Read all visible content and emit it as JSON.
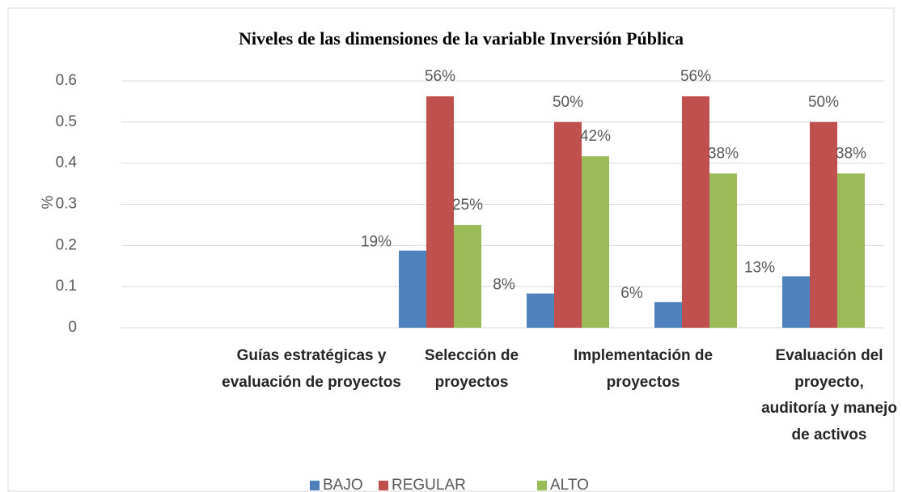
{
  "chart_data": {
    "type": "bar",
    "title": "Niveles de las dimensiones de la variable Inversión Pública",
    "y_label": "%",
    "categories": [
      "Guías estratégicas y evaluación de proyectos",
      "Selección de proyectos",
      "Implementación de proyectos",
      "Evaluación del proyecto, auditoría y manejo de activos"
    ],
    "series": [
      {
        "name": "BAJO",
        "color": "#4f81bd",
        "values": [
          0.1875,
          0.0833,
          0.0625,
          0.125
        ],
        "value_labels": [
          "19%",
          "8%",
          "6%",
          "13%"
        ]
      },
      {
        "name": "REGULAR",
        "color": "#c0504d",
        "values": [
          0.5625,
          0.5,
          0.5625,
          0.5
        ],
        "value_labels": [
          "56%",
          "50%",
          "56%",
          "50%"
        ]
      },
      {
        "name": "ALTO",
        "color": "#9bbb59",
        "values": [
          0.25,
          0.4167,
          0.375,
          0.375
        ],
        "value_labels": [
          "25%",
          "42%",
          "38%",
          "38%"
        ]
      }
    ],
    "ylim": [
      0,
      0.6
    ],
    "yticks": [
      0,
      0.1,
      0.2,
      0.3,
      0.4,
      0.5,
      0.6
    ],
    "grid": true,
    "legend": "bottom"
  }
}
